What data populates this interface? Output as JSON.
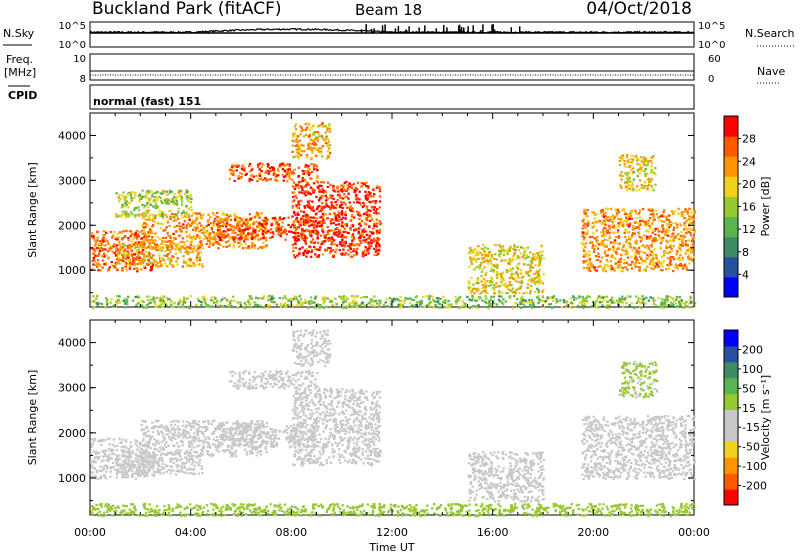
{
  "header": {
    "title": "Buckland Park (fitACF)",
    "beam": "Beam 18",
    "date": "04/Oct/2018"
  },
  "strips": {
    "nsky_label": "N.Sky",
    "nsky_ticks": [
      "10^5",
      "10^0"
    ],
    "nsearch_label": "N.Search",
    "nsearch_ticks": [
      "10^5",
      "10^0"
    ],
    "freq_label": "Freq.",
    "freq_unit": "[MHz]",
    "freq_ticks": [
      "10",
      "8"
    ],
    "nave_label": "Nave",
    "nave_ticks": [
      "60",
      "0"
    ],
    "cpid_label": "CPID",
    "cpid_value": "normal (fast) 151"
  },
  "colors": {
    "power_scale": [
      "#0000ff",
      "#2850a0",
      "#3c8c64",
      "#5ab450",
      "#96c832",
      "#f0d21e",
      "#ff9600",
      "#ff5a00",
      "#ff0000"
    ],
    "velocity_scale": [
      "#ff0000",
      "#ff5a00",
      "#ff9600",
      "#f0d21e",
      "#c8c8c8",
      "#c8c8c8",
      "#96c832",
      "#5ab450",
      "#3c8c64",
      "#2850a0",
      "#0000ff"
    ]
  },
  "chart_data": [
    {
      "type": "heatmap",
      "name": "power",
      "ylabel": "Slant Range [km]",
      "yticks": [
        "4000",
        "3000",
        "2000",
        "1000"
      ],
      "ylim": [
        180,
        4500
      ],
      "colorbar_label": "Power [dB]",
      "colorbar_ticks": [
        "28",
        "24",
        "20",
        "16",
        "12",
        "8",
        "4"
      ],
      "colorbar_range": [
        0,
        30
      ],
      "regions": [
        {
          "t": [
            0.0,
            2.5
          ],
          "r": [
            1000,
            1900
          ],
          "v": 24
        },
        {
          "t": [
            1.0,
            4.5
          ],
          "r": [
            1100,
            1600
          ],
          "v": 20
        },
        {
          "t": [
            2.0,
            7.0
          ],
          "r": [
            1500,
            2300
          ],
          "v": 22
        },
        {
          "t": [
            5.0,
            9.0
          ],
          "r": [
            1700,
            2200
          ],
          "v": 26
        },
        {
          "t": [
            8.0,
            11.5
          ],
          "r": [
            1300,
            3000
          ],
          "v": 27
        },
        {
          "t": [
            5.5,
            9.0
          ],
          "r": [
            3000,
            3400
          ],
          "v": 25
        },
        {
          "t": [
            8.0,
            9.5
          ],
          "r": [
            3500,
            4300
          ],
          "v": 20
        },
        {
          "t": [
            1.0,
            4.0
          ],
          "r": [
            2200,
            2800
          ],
          "v": 16
        },
        {
          "t": [
            15.0,
            18.0
          ],
          "r": [
            500,
            1600
          ],
          "v": 18
        },
        {
          "t": [
            19.5,
            24.0
          ],
          "r": [
            1000,
            2400
          ],
          "v": 22
        },
        {
          "t": [
            21.0,
            22.5
          ],
          "r": [
            2800,
            3600
          ],
          "v": 18
        },
        {
          "t": [
            0.0,
            24.0
          ],
          "r": [
            180,
            450
          ],
          "v": 14
        }
      ],
      "xlabel": "Time UT",
      "xticks": [
        "00:00",
        "04:00",
        "08:00",
        "12:00",
        "16:00",
        "20:00",
        "00:00"
      ],
      "xlim": [
        0,
        24
      ]
    },
    {
      "type": "heatmap",
      "name": "velocity",
      "ylabel": "Slant Range [km]",
      "yticks": [
        "4000",
        "3000",
        "2000",
        "1000"
      ],
      "ylim": [
        180,
        4500
      ],
      "colorbar_label": "Velocity [m s⁻¹]",
      "colorbar_ticks": [
        "200",
        "100",
        "50",
        "15",
        "-15",
        "-50",
        "-100",
        "-200"
      ],
      "colorbar_range": [
        -250,
        250
      ],
      "regions": [
        {
          "t": [
            0.0,
            2.5
          ],
          "r": [
            1000,
            1900
          ],
          "v": 0
        },
        {
          "t": [
            1.0,
            4.5
          ],
          "r": [
            1100,
            1600
          ],
          "v": 5
        },
        {
          "t": [
            2.0,
            7.0
          ],
          "r": [
            1500,
            2300
          ],
          "v": -5
        },
        {
          "t": [
            5.0,
            9.0
          ],
          "r": [
            1700,
            2200
          ],
          "v": 0
        },
        {
          "t": [
            8.0,
            11.5
          ],
          "r": [
            1300,
            3000
          ],
          "v": 5
        },
        {
          "t": [
            5.5,
            9.0
          ],
          "r": [
            3000,
            3400
          ],
          "v": 0
        },
        {
          "t": [
            8.0,
            9.5
          ],
          "r": [
            3500,
            4300
          ],
          "v": -20
        },
        {
          "t": [
            15.0,
            18.0
          ],
          "r": [
            500,
            1600
          ],
          "v": 0
        },
        {
          "t": [
            19.5,
            24.0
          ],
          "r": [
            1000,
            2400
          ],
          "v": 0
        },
        {
          "t": [
            21.0,
            22.5
          ],
          "r": [
            2800,
            3600
          ],
          "v": 30
        },
        {
          "t": [
            0.0,
            24.0
          ],
          "r": [
            180,
            450
          ],
          "v": 40
        }
      ],
      "xlabel": "Time UT",
      "xticks": [
        "00:00",
        "04:00",
        "08:00",
        "12:00",
        "16:00",
        "20:00",
        "00:00"
      ],
      "xlim": [
        0,
        24
      ]
    }
  ]
}
